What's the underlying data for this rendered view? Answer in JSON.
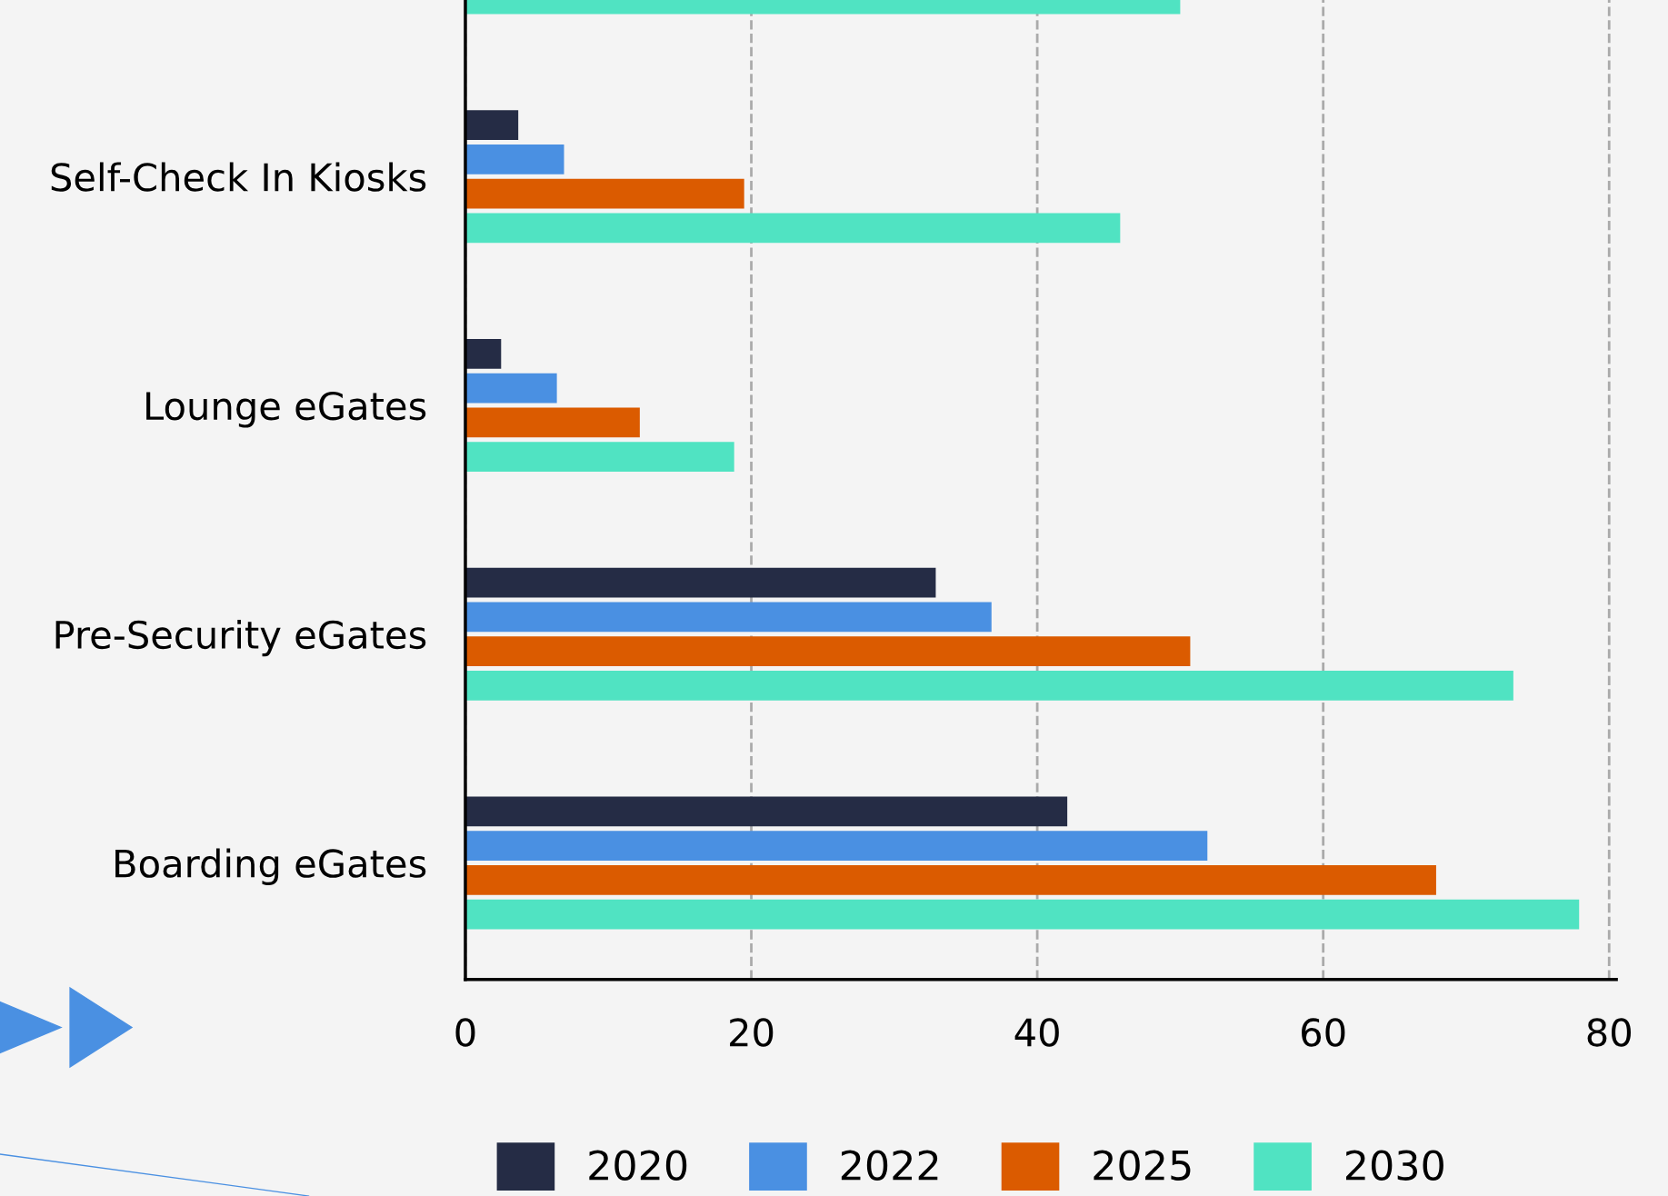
{
  "chart_data": {
    "type": "bar",
    "orientation": "horizontal",
    "categories": [
      null,
      "Self-Check In Kiosks",
      "Lounge eGates",
      "Pre-Security eGates",
      "Boarding eGates"
    ],
    "series": [
      {
        "name": "2020",
        "color": "#252c45",
        "values": [
          null,
          3.7,
          2.5,
          32.9,
          42.1
        ]
      },
      {
        "name": "2022",
        "color": "#4a90e2",
        "values": [
          null,
          6.9,
          6.4,
          36.8,
          51.9
        ]
      },
      {
        "name": "2025",
        "color": "#db5b00",
        "values": [
          null,
          19.5,
          12.2,
          50.7,
          67.9
        ]
      },
      {
        "name": "2030",
        "color": "#50e3c2",
        "values": [
          50,
          45.8,
          18.8,
          73.3,
          77.9
        ]
      }
    ],
    "xlim": [
      0,
      80.5
    ],
    "xticks": [
      0,
      20,
      40,
      60,
      80
    ],
    "grid": "x",
    "legend": "bottom"
  }
}
